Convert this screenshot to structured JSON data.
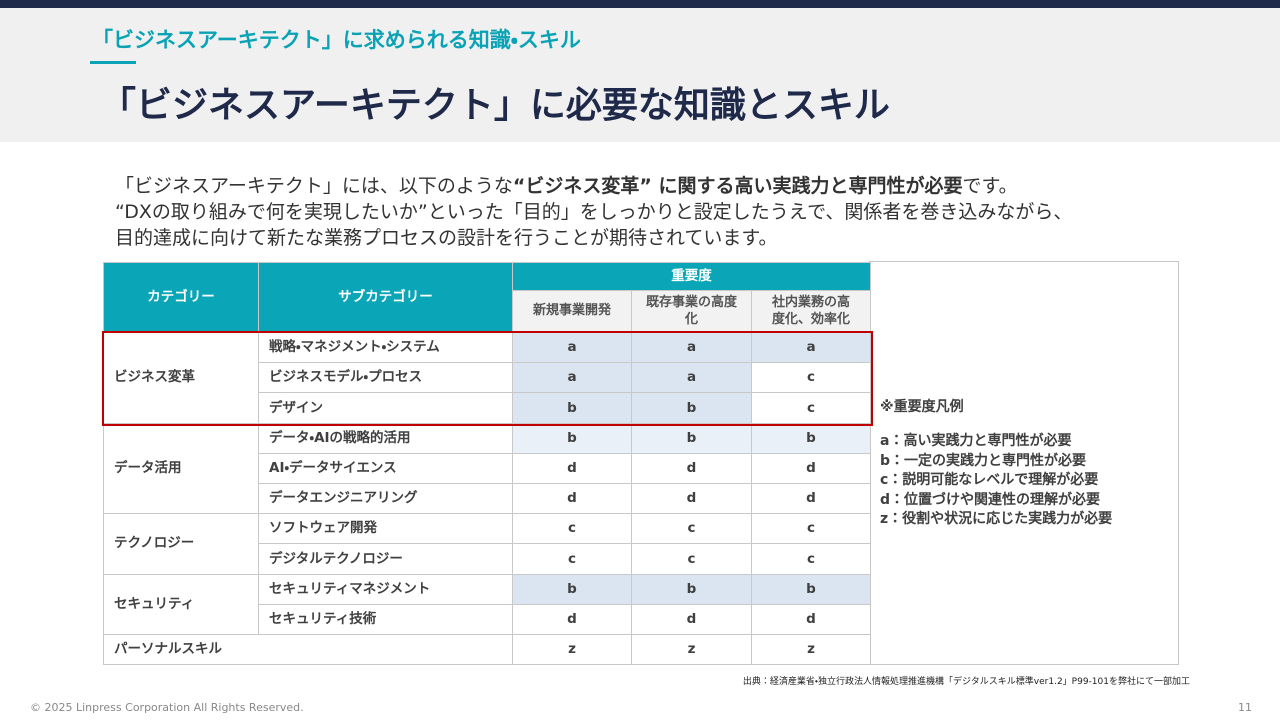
{
  "header": {
    "subtitle": "「ビジネスアーキテクト」に求められる知識・スキル",
    "title": "「ビジネスアーキテクト」に必要な知識とスキル"
  },
  "intro": {
    "line1": [
      "「ビジネスアーキテクト」には、以下のような",
      "“ビジネス変革” に関する高い実践力と専門性が必要",
      "です。"
    ],
    "line2": "“DXの取り組みで何を実現したいか”といった「目的」をしっかりと設定したうえで、関係者を巻き込みながら、",
    "line3": "目的達成に向けて新たな業務プロセスの設計を行うことが期待されています。"
  },
  "table": {
    "header": {
      "category": "カテゴリー",
      "subcategory": "サブカテゴリー",
      "importance": "重要度",
      "columns": [
        "新規事業開発",
        "既存事業の高度化",
        "社内業務の高度化、効率化"
      ]
    },
    "groups": [
      {
        "category": "ビジネス変革",
        "rows": [
          {
            "subcategory": "戦略・マネジメント・システム",
            "values": [
              "a",
              "a",
              "a"
            ]
          },
          {
            "subcategory": "ビジネスモデル・プロセス",
            "values": [
              "a",
              "a",
              "c"
            ]
          },
          {
            "subcategory": "デザイン",
            "values": [
              "b",
              "b",
              "c"
            ]
          }
        ]
      },
      {
        "category": "データ活用",
        "rows": [
          {
            "subcategory": "データ・AIの戦略的活用",
            "values": [
              "b",
              "b",
              "b"
            ]
          },
          {
            "subcategory": "AI・データサイエンス",
            "values": [
              "d",
              "d",
              "d"
            ]
          },
          {
            "subcategory": "データエンジニアリング",
            "values": [
              "d",
              "d",
              "d"
            ]
          }
        ]
      },
      {
        "category": "テクノロジー",
        "rows": [
          {
            "subcategory": "ソフトウェア開発",
            "values": [
              "c",
              "c",
              "c"
            ]
          },
          {
            "subcategory": "デジタルテクノロジー",
            "values": [
              "c",
              "c",
              "c"
            ]
          }
        ]
      },
      {
        "category": "セキュリティ",
        "rows": [
          {
            "subcategory": "セキュリティマネジメント",
            "values": [
              "b",
              "b",
              "b"
            ]
          },
          {
            "subcategory": "セキュリティ技術",
            "values": [
              "d",
              "d",
              "d"
            ]
          }
        ]
      },
      {
        "category": "パーソナルスキル",
        "rows": [
          {
            "values": [
              "z",
              "z",
              "z"
            ]
          }
        ]
      }
    ]
  },
  "legend": {
    "title": "※重要度凡例",
    "items": [
      "a：高い実践力と専門性が必要",
      "b：一定の実践力と専門性が必要",
      "c：説明可能なレベルで理解が必要",
      "d：位置づけや関連性の理解が必要",
      "z：役割や状況に応じた実践力が必要"
    ]
  },
  "source": "出典：経済産業省・独立行政法人情報処理推進機構「デジタルスキル標準ver1.2」P99-101を弊社にて一部加工",
  "footer": {
    "copyright": "© 2025 Linpress Corporation All Rights Reserved.",
    "page": "11"
  }
}
